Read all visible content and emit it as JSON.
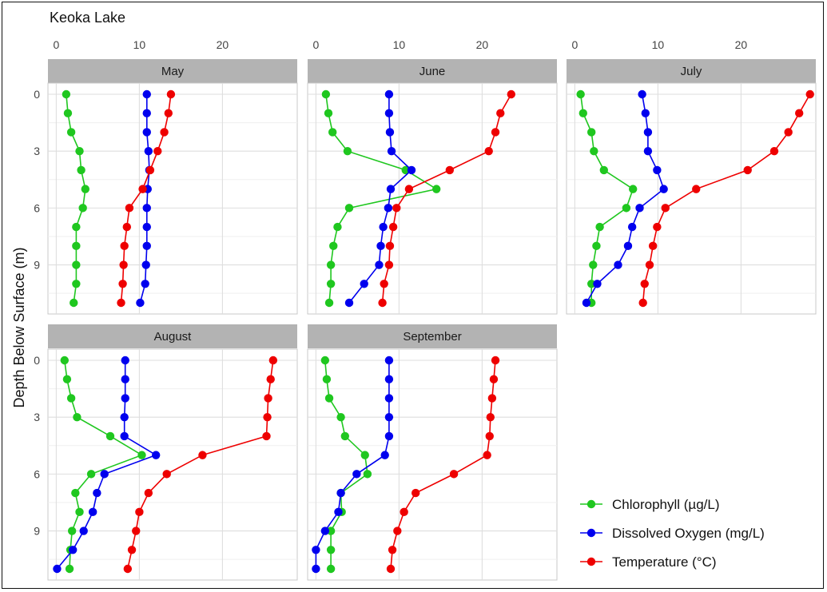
{
  "chart_data": {
    "type": "line",
    "title": "Keoka Lake",
    "xlabel": "",
    "ylabel": "Depth Below Surface (m)",
    "xlim": [
      -1,
      29
    ],
    "ylim": [
      11,
      0
    ],
    "x_ticks": [
      0,
      10,
      20
    ],
    "y_ticks": [
      0,
      3,
      6,
      9
    ],
    "depths": [
      0,
      1,
      2,
      3,
      4,
      5,
      6,
      7,
      8,
      9,
      10,
      11
    ],
    "grid": true,
    "legend_position": "bottom-right",
    "series_meta": [
      {
        "key": "chl",
        "name": "Chlorophyll (µg/L)",
        "color": "#1fc71f"
      },
      {
        "key": "do",
        "name": "Dissolved Oxygen (mg/L)",
        "color": "#0000ee"
      },
      {
        "key": "temp",
        "name": "Temperature (°C)",
        "color": "#ee0000"
      }
    ],
    "panels": [
      {
        "label": "May",
        "chl": [
          1.2,
          1.4,
          1.8,
          2.8,
          3.0,
          3.5,
          3.2,
          2.4,
          2.4,
          2.4,
          2.4,
          2.1
        ],
        "do": [
          10.9,
          10.9,
          10.9,
          11.1,
          11.2,
          11.0,
          10.9,
          10.9,
          10.9,
          10.8,
          10.7,
          10.1
        ],
        "temp": [
          13.8,
          13.5,
          13.0,
          12.2,
          11.3,
          10.4,
          8.8,
          8.5,
          8.2,
          8.1,
          8.0,
          7.8
        ]
      },
      {
        "label": "June",
        "chl": [
          1.2,
          1.5,
          2.0,
          3.8,
          10.8,
          14.5,
          4.0,
          2.6,
          2.1,
          1.8,
          1.8,
          1.6
        ],
        "do": [
          8.8,
          8.8,
          8.9,
          9.1,
          11.5,
          9.0,
          8.7,
          8.1,
          7.8,
          7.6,
          5.8,
          4.0
        ],
        "temp": [
          23.5,
          22.2,
          21.6,
          20.8,
          16.1,
          11.2,
          9.7,
          9.3,
          8.9,
          8.8,
          8.2,
          8.0
        ]
      },
      {
        "label": "July",
        "chl": [
          0.7,
          1.0,
          2.0,
          2.3,
          3.5,
          7.0,
          6.2,
          3.0,
          2.6,
          2.2,
          2.0,
          2.0
        ],
        "do": [
          8.1,
          8.5,
          8.8,
          8.8,
          9.9,
          10.7,
          7.8,
          6.9,
          6.4,
          5.2,
          2.7,
          1.4
        ],
        "temp": [
          28.3,
          27.0,
          25.7,
          24.0,
          20.8,
          14.6,
          10.9,
          9.9,
          9.4,
          9.0,
          8.4,
          8.2
        ]
      },
      {
        "label": "August",
        "chl": [
          1.0,
          1.3,
          1.8,
          2.5,
          6.5,
          10.3,
          4.2,
          2.3,
          2.8,
          1.9,
          1.7,
          1.6
        ],
        "do": [
          8.3,
          8.3,
          8.3,
          8.2,
          8.2,
          12.0,
          5.8,
          4.9,
          4.4,
          3.3,
          2.0,
          0.1
        ],
        "temp": [
          26.1,
          25.8,
          25.5,
          25.4,
          25.3,
          17.6,
          13.3,
          11.1,
          10.0,
          9.6,
          9.1,
          8.6
        ]
      },
      {
        "label": "September",
        "chl": [
          1.1,
          1.3,
          1.6,
          3.0,
          3.5,
          5.9,
          6.2,
          3.0,
          3.1,
          1.8,
          1.8,
          1.8
        ],
        "do": [
          8.8,
          8.8,
          8.8,
          8.8,
          8.8,
          8.3,
          4.9,
          3.0,
          2.7,
          1.1,
          0.0,
          0.0
        ],
        "temp": [
          21.6,
          21.4,
          21.2,
          21.0,
          20.9,
          20.6,
          16.6,
          12.0,
          10.6,
          9.8,
          9.2,
          9.0
        ]
      }
    ]
  }
}
